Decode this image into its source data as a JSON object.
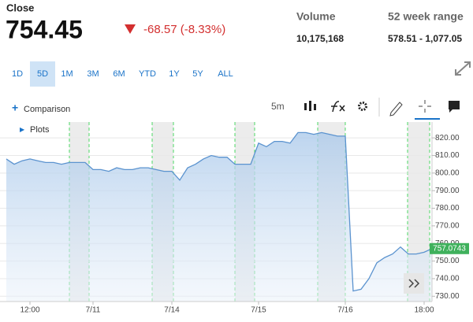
{
  "header": {
    "close_label": "Close",
    "price": "754.45",
    "change": "-68.57 (-8.33%)",
    "volume_label": "Volume",
    "volume": "10,175,168",
    "range_label": "52 week range",
    "range": "578.51 - 1,077.05"
  },
  "ranges": [
    "1D",
    "5D",
    "1M",
    "3M",
    "6M",
    "YTD",
    "1Y",
    "5Y",
    "ALL"
  ],
  "toolbar": {
    "comparison": "Comparison",
    "interval": "5m",
    "plots": "Plots"
  },
  "chart_data": {
    "type": "line",
    "color": "#5b93cf",
    "grid": true,
    "categories": [
      null,
      null,
      null,
      "12:00",
      null,
      null,
      null,
      null,
      null,
      null,
      null,
      "7/11",
      null,
      null,
      null,
      null,
      null,
      null,
      null,
      null,
      null,
      "7/14",
      null,
      null,
      null,
      null,
      null,
      null,
      null,
      null,
      null,
      null,
      "7/15",
      null,
      null,
      null,
      null,
      null,
      null,
      null,
      null,
      null,
      null,
      "7/16",
      null,
      null,
      null,
      null,
      null,
      null,
      null,
      null,
      null,
      "18:00",
      null
    ],
    "values": [
      808,
      805,
      807,
      808,
      807,
      806,
      806,
      805,
      806,
      806,
      806,
      802,
      802,
      801,
      803,
      802,
      802,
      803,
      803,
      802,
      801,
      801,
      796,
      803,
      805,
      808,
      810,
      809,
      809,
      805,
      805,
      805,
      817,
      815,
      818,
      818,
      817,
      823,
      823,
      822,
      823,
      822,
      821,
      821,
      733,
      734,
      740,
      749,
      752,
      754,
      758,
      754,
      754,
      755,
      757.0743
    ],
    "last_price": 757.0743,
    "ylim": [
      727,
      829
    ],
    "yticks": [
      {
        "value": 730,
        "label": "730.00"
      },
      {
        "value": 740,
        "label": "740.00"
      },
      {
        "value": 750,
        "label": "750.00"
      },
      {
        "value": 760,
        "label": "760.00"
      },
      {
        "value": 770,
        "label": "770.00"
      },
      {
        "value": 780,
        "label": "780.00"
      },
      {
        "value": 790,
        "label": "790.00"
      },
      {
        "value": 800,
        "label": "800.00"
      },
      {
        "value": 810,
        "label": "810.00"
      },
      {
        "value": 820,
        "label": "820.00"
      }
    ]
  }
}
